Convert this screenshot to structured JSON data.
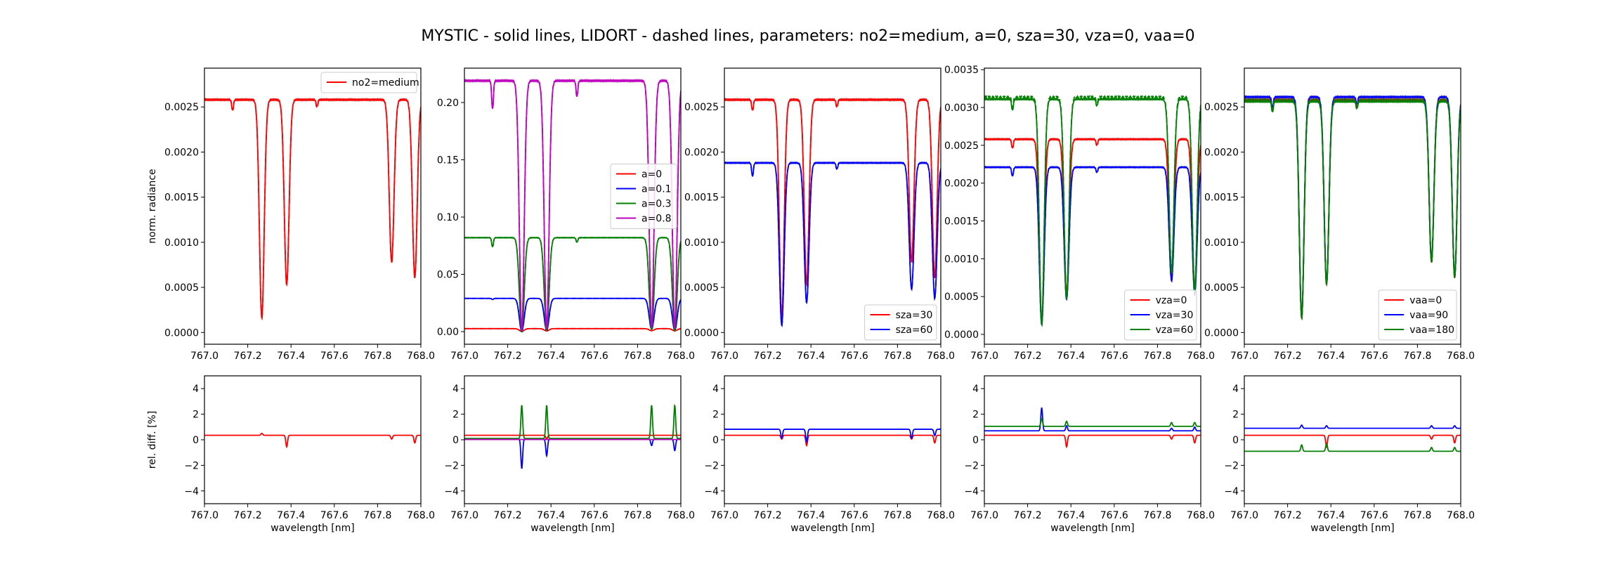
{
  "figure": {
    "title": "MYSTIC - solid lines,  LIDORT - dashed lines,  parameters: no2=medium, a=0, sza=30, vza=0, vaa=0"
  },
  "chart_data": [
    {
      "type": "line",
      "panel": "top",
      "column": 1,
      "ylabel": "norm. radiance",
      "xlabel": "",
      "xlim": [
        767.0,
        768.0
      ],
      "ylim": [
        -0.00013,
        0.00293
      ],
      "xticks": [
        "767.0",
        "767.2",
        "767.4",
        "767.6",
        "767.8",
        "768.0"
      ],
      "yticks": [
        "0.0000",
        "0.0005",
        "0.0010",
        "0.0015",
        "0.0020",
        "0.0025"
      ],
      "grid": false,
      "legend_position": "top-right",
      "series": [
        {
          "name": "no2=medium",
          "color": "#ff0000",
          "continuum": 0.00258,
          "lidort_continuum": 0.00258,
          "dips": [
            {
              "x": 767.13,
              "depth": 0.00012
            },
            {
              "x": 767.265,
              "depth": 0.00242
            },
            {
              "x": 767.38,
              "depth": 0.00205
            },
            {
              "x": 767.52,
              "depth": 8e-05
            },
            {
              "x": 767.865,
              "depth": 0.0018
            },
            {
              "x": 767.972,
              "depth": 0.00197
            }
          ]
        }
      ]
    },
    {
      "type": "line",
      "panel": "top",
      "column": 2,
      "ylabel": "",
      "xlabel": "",
      "xlim": [
        767.0,
        768.0
      ],
      "ylim": [
        -0.011,
        0.23
      ],
      "xticks": [
        "767.0",
        "767.2",
        "767.4",
        "767.6",
        "767.8",
        "768.0"
      ],
      "yticks": [
        "0.00",
        "0.05",
        "0.10",
        "0.15",
        "0.20"
      ],
      "grid": false,
      "legend_position": "center-right",
      "series": [
        {
          "name": "a=0",
          "color": "#ff0000",
          "continuum": 0.0026,
          "lidort_continuum": 0.0026,
          "dips": [
            {
              "x": 767.265,
              "depth": 0.0024
            },
            {
              "x": 767.38,
              "depth": 0.002
            },
            {
              "x": 767.865,
              "depth": 0.0018
            },
            {
              "x": 767.972,
              "depth": 0.0019
            }
          ]
        },
        {
          "name": "a=0.1",
          "color": "#0000ff",
          "continuum": 0.029,
          "lidort_continuum": 0.029,
          "dips": [
            {
              "x": 767.13,
              "depth": 0.001
            },
            {
              "x": 767.265,
              "depth": 0.029
            },
            {
              "x": 767.38,
              "depth": 0.028
            },
            {
              "x": 767.865,
              "depth": 0.027
            },
            {
              "x": 767.972,
              "depth": 0.028
            }
          ]
        },
        {
          "name": "a=0.3",
          "color": "#008000",
          "continuum": 0.082,
          "lidort_continuum": 0.082,
          "dips": [
            {
              "x": 767.13,
              "depth": 0.008
            },
            {
              "x": 767.265,
              "depth": 0.082
            },
            {
              "x": 767.38,
              "depth": 0.081
            },
            {
              "x": 767.52,
              "depth": 0.004
            },
            {
              "x": 767.865,
              "depth": 0.08
            },
            {
              "x": 767.972,
              "depth": 0.081
            }
          ]
        },
        {
          "name": "a=0.8",
          "color": "#bf00bf",
          "continuum": 0.219,
          "lidort_continuum": 0.219,
          "dips": [
            {
              "x": 767.13,
              "depth": 0.025
            },
            {
              "x": 767.265,
              "depth": 0.218
            },
            {
              "x": 767.38,
              "depth": 0.217
            },
            {
              "x": 767.52,
              "depth": 0.014
            },
            {
              "x": 767.865,
              "depth": 0.215
            },
            {
              "x": 767.972,
              "depth": 0.216
            }
          ]
        }
      ]
    },
    {
      "type": "line",
      "panel": "top",
      "column": 3,
      "ylabel": "",
      "xlabel": "",
      "xlim": [
        767.0,
        768.0
      ],
      "ylim": [
        -0.00013,
        0.00293
      ],
      "xticks": [
        "767.0",
        "767.2",
        "767.4",
        "767.6",
        "767.8",
        "768.0"
      ],
      "yticks": [
        "0.0000",
        "0.0005",
        "0.0010",
        "0.0015",
        "0.0020",
        "0.0025"
      ],
      "grid": false,
      "legend_position": "lower-right",
      "series": [
        {
          "name": "sza=30",
          "color": "#ff0000",
          "continuum": 0.00258,
          "lidort_continuum": 0.00258,
          "dips": [
            {
              "x": 767.13,
              "depth": 0.00012
            },
            {
              "x": 767.265,
              "depth": 0.00242
            },
            {
              "x": 767.38,
              "depth": 0.00205
            },
            {
              "x": 767.52,
              "depth": 8e-05
            },
            {
              "x": 767.865,
              "depth": 0.0018
            },
            {
              "x": 767.972,
              "depth": 0.00197
            }
          ]
        },
        {
          "name": "sza=60",
          "color": "#0000ff",
          "continuum": 0.00188,
          "lidort_continuum": 0.00188,
          "dips": [
            {
              "x": 767.13,
              "depth": 0.00015
            },
            {
              "x": 767.265,
              "depth": 0.0018
            },
            {
              "x": 767.38,
              "depth": 0.00155
            },
            {
              "x": 767.52,
              "depth": 7e-05
            },
            {
              "x": 767.865,
              "depth": 0.0014
            },
            {
              "x": 767.972,
              "depth": 0.0015
            }
          ]
        }
      ]
    },
    {
      "type": "line",
      "panel": "top",
      "column": 4,
      "ylabel": "",
      "xlabel": "",
      "xlim": [
        767.0,
        768.0
      ],
      "ylim": [
        -0.00013,
        0.00352
      ],
      "xticks": [
        "767.0",
        "767.2",
        "767.4",
        "767.6",
        "767.8",
        "768.0"
      ],
      "yticks": [
        "0.0000",
        "0.0005",
        "0.0010",
        "0.0015",
        "0.0020",
        "0.0025",
        "0.0030",
        "0.0035"
      ],
      "grid": false,
      "legend_position": "lower-right",
      "series": [
        {
          "name": "vza=0",
          "color": "#ff0000",
          "continuum": 0.00258,
          "lidort_continuum": 0.00258,
          "dips": [
            {
              "x": 767.13,
              "depth": 0.00012
            },
            {
              "x": 767.265,
              "depth": 0.00242
            },
            {
              "x": 767.38,
              "depth": 0.00205
            },
            {
              "x": 767.52,
              "depth": 8e-05
            },
            {
              "x": 767.865,
              "depth": 0.0018
            },
            {
              "x": 767.972,
              "depth": 0.00197
            }
          ]
        },
        {
          "name": "vza=30",
          "color": "#0000ff",
          "continuum": 0.00221,
          "lidort_continuum": 0.00221,
          "dips": [
            {
              "x": 767.13,
              "depth": 0.00012
            },
            {
              "x": 767.265,
              "depth": 0.00208
            },
            {
              "x": 767.38,
              "depth": 0.00175
            },
            {
              "x": 767.52,
              "depth": 7e-05
            },
            {
              "x": 767.865,
              "depth": 0.0015
            },
            {
              "x": 767.972,
              "depth": 0.00168
            }
          ]
        },
        {
          "name": "vza=60",
          "color": "#008000",
          "continuum": 0.00311,
          "lidort_continuum": 0.00314,
          "dips": [
            {
              "x": 767.13,
              "depth": 0.00015
            },
            {
              "x": 767.265,
              "depth": 0.00298
            },
            {
              "x": 767.38,
              "depth": 0.00265
            },
            {
              "x": 767.52,
              "depth": 9e-05
            },
            {
              "x": 767.865,
              "depth": 0.0023
            },
            {
              "x": 767.972,
              "depth": 0.00255
            }
          ]
        }
      ]
    },
    {
      "type": "line",
      "panel": "top",
      "column": 5,
      "ylabel": "",
      "xlabel": "",
      "xlim": [
        767.0,
        768.0
      ],
      "ylim": [
        -0.00013,
        0.00293
      ],
      "xticks": [
        "767.0",
        "767.2",
        "767.4",
        "767.6",
        "767.8",
        "768.0"
      ],
      "yticks": [
        "0.0000",
        "0.0005",
        "0.0010",
        "0.0015",
        "0.0020",
        "0.0025"
      ],
      "grid": false,
      "legend_position": "lower-right",
      "series": [
        {
          "name": "vaa=0",
          "color": "#ff0000",
          "continuum": 0.00258,
          "lidort_continuum": 0.00258,
          "dips": [
            {
              "x": 767.13,
              "depth": 0.00012
            },
            {
              "x": 767.265,
              "depth": 0.00242
            },
            {
              "x": 767.38,
              "depth": 0.00205
            },
            {
              "x": 767.52,
              "depth": 8e-05
            },
            {
              "x": 767.865,
              "depth": 0.0018
            },
            {
              "x": 767.972,
              "depth": 0.00197
            }
          ]
        },
        {
          "name": "vaa=90",
          "color": "#0000ff",
          "continuum": 0.00261,
          "lidort_continuum": 0.00261,
          "dips": [
            {
              "x": 767.13,
              "depth": 0.00012
            },
            {
              "x": 767.265,
              "depth": 0.00244
            },
            {
              "x": 767.38,
              "depth": 0.00207
            },
            {
              "x": 767.52,
              "depth": 8e-05
            },
            {
              "x": 767.865,
              "depth": 0.00182
            },
            {
              "x": 767.972,
              "depth": 0.00199
            }
          ]
        },
        {
          "name": "vaa=180",
          "color": "#008000",
          "continuum": 0.00256,
          "lidort_continuum": 0.00258,
          "dips": [
            {
              "x": 767.13,
              "depth": 0.00012
            },
            {
              "x": 767.265,
              "depth": 0.0024
            },
            {
              "x": 767.38,
              "depth": 0.00203
            },
            {
              "x": 767.52,
              "depth": 8e-05
            },
            {
              "x": 767.865,
              "depth": 0.00178
            },
            {
              "x": 767.972,
              "depth": 0.00195
            }
          ]
        }
      ]
    },
    {
      "type": "line",
      "panel": "bottom",
      "column": 1,
      "ylabel": "rel. diff. [%]",
      "xlabel": "wavelength [nm]",
      "xlim": [
        767.0,
        768.0
      ],
      "ylim": [
        -5,
        5
      ],
      "xticks": [
        "767.0",
        "767.2",
        "767.4",
        "767.6",
        "767.8",
        "768.0"
      ],
      "yticks": [
        "−4",
        "−2",
        "0",
        "2",
        "4"
      ],
      "grid": false,
      "series": [
        {
          "color": "#ff0000",
          "baseline": 0.35,
          "spikes": [
            {
              "x": 767.265,
              "amp": 0.15
            },
            {
              "x": 767.38,
              "amp": -0.9
            },
            {
              "x": 767.865,
              "amp": -0.3
            },
            {
              "x": 767.972,
              "amp": -0.6
            }
          ]
        }
      ]
    },
    {
      "type": "line",
      "panel": "bottom",
      "column": 2,
      "ylabel": "",
      "xlabel": "wavelength [nm]",
      "xlim": [
        767.0,
        768.0
      ],
      "ylim": [
        -5,
        5
      ],
      "xticks": [
        "767.0",
        "767.2",
        "767.4",
        "767.6",
        "767.8",
        "768.0"
      ],
      "yticks": [
        "−4",
        "−2",
        "0",
        "2",
        "4"
      ],
      "grid": false,
      "series": [
        {
          "color": "#ff0000",
          "baseline": 0.35,
          "spikes": [
            {
              "x": 767.38,
              "amp": -0.3
            }
          ]
        },
        {
          "color": "#0000ff",
          "baseline": 0.05,
          "spikes": [
            {
              "x": 767.265,
              "amp": -2.3
            },
            {
              "x": 767.38,
              "amp": -1.3
            },
            {
              "x": 767.865,
              "amp": -0.5
            },
            {
              "x": 767.972,
              "amp": -0.9
            }
          ]
        },
        {
          "color": "#008000",
          "baseline": 0.1,
          "spikes": [
            {
              "x": 767.265,
              "amp": 2.6
            },
            {
              "x": 767.38,
              "amp": 2.6
            },
            {
              "x": 767.865,
              "amp": 2.6
            },
            {
              "x": 767.972,
              "amp": 2.6
            }
          ]
        },
        {
          "color": "#bf00bf",
          "baseline": 0.02,
          "spikes": []
        }
      ]
    },
    {
      "type": "line",
      "panel": "bottom",
      "column": 3,
      "ylabel": "",
      "xlabel": "wavelength [nm]",
      "xlim": [
        767.0,
        768.0
      ],
      "ylim": [
        -5,
        5
      ],
      "xticks": [
        "767.0",
        "767.2",
        "767.4",
        "767.6",
        "767.8",
        "768.0"
      ],
      "yticks": [
        "−4",
        "−2",
        "0",
        "2",
        "4"
      ],
      "grid": false,
      "series": [
        {
          "color": "#ff0000",
          "baseline": 0.35,
          "spikes": [
            {
              "x": 767.265,
              "amp": -0.3
            },
            {
              "x": 767.38,
              "amp": -0.8
            },
            {
              "x": 767.865,
              "amp": -0.3
            },
            {
              "x": 767.972,
              "amp": -0.6
            }
          ]
        },
        {
          "color": "#0000ff",
          "baseline": 0.82,
          "spikes": [
            {
              "x": 767.265,
              "amp": -0.7
            },
            {
              "x": 767.38,
              "amp": -1.0
            },
            {
              "x": 767.865,
              "amp": -0.7
            },
            {
              "x": 767.972,
              "amp": -0.5
            }
          ]
        }
      ]
    },
    {
      "type": "line",
      "panel": "bottom",
      "column": 4,
      "ylabel": "",
      "xlabel": "wavelength [nm]",
      "xlim": [
        767.0,
        768.0
      ],
      "ylim": [
        -5,
        5
      ],
      "xticks": [
        "767.0",
        "767.2",
        "767.4",
        "767.6",
        "767.8",
        "768.0"
      ],
      "yticks": [
        "−4",
        "−2",
        "0",
        "2",
        "4"
      ],
      "grid": false,
      "series": [
        {
          "color": "#ff0000",
          "baseline": 0.35,
          "spikes": [
            {
              "x": 767.38,
              "amp": -0.9
            },
            {
              "x": 767.865,
              "amp": -0.3
            },
            {
              "x": 767.972,
              "amp": -0.6
            }
          ]
        },
        {
          "color": "#0000ff",
          "baseline": 0.7,
          "spikes": [
            {
              "x": 767.265,
              "amp": 1.8
            },
            {
              "x": 767.38,
              "amp": 0.4
            },
            {
              "x": 767.865,
              "amp": 0.2
            },
            {
              "x": 767.972,
              "amp": 0.3
            }
          ]
        },
        {
          "color": "#008000",
          "baseline": 1.05,
          "spikes": [
            {
              "x": 767.265,
              "amp": 0.6
            },
            {
              "x": 767.38,
              "amp": 0.4
            },
            {
              "x": 767.865,
              "amp": 0.3
            },
            {
              "x": 767.972,
              "amp": 0.3
            }
          ]
        }
      ]
    },
    {
      "type": "line",
      "panel": "bottom",
      "column": 5,
      "ylabel": "",
      "xlabel": "wavelength [nm]",
      "xlim": [
        767.0,
        768.0
      ],
      "ylim": [
        -5,
        5
      ],
      "xticks": [
        "767.0",
        "767.2",
        "767.4",
        "767.6",
        "767.8",
        "768.0"
      ],
      "yticks": [
        "−4",
        "−2",
        "0",
        "2",
        "4"
      ],
      "grid": false,
      "series": [
        {
          "color": "#ff0000",
          "baseline": 0.35,
          "spikes": [
            {
              "x": 767.38,
              "amp": -0.9
            },
            {
              "x": 767.865,
              "amp": -0.3
            },
            {
              "x": 767.972,
              "amp": -0.6
            }
          ]
        },
        {
          "color": "#0000ff",
          "baseline": 0.9,
          "spikes": [
            {
              "x": 767.265,
              "amp": 0.25
            },
            {
              "x": 767.38,
              "amp": 0.2
            },
            {
              "x": 767.865,
              "amp": 0.2
            },
            {
              "x": 767.972,
              "amp": 0.2
            }
          ]
        },
        {
          "color": "#008000",
          "baseline": -0.9,
          "spikes": [
            {
              "x": 767.265,
              "amp": 0.5
            },
            {
              "x": 767.38,
              "amp": 0.6
            },
            {
              "x": 767.865,
              "amp": 0.3
            },
            {
              "x": 767.972,
              "amp": 0.3
            }
          ]
        }
      ]
    }
  ]
}
